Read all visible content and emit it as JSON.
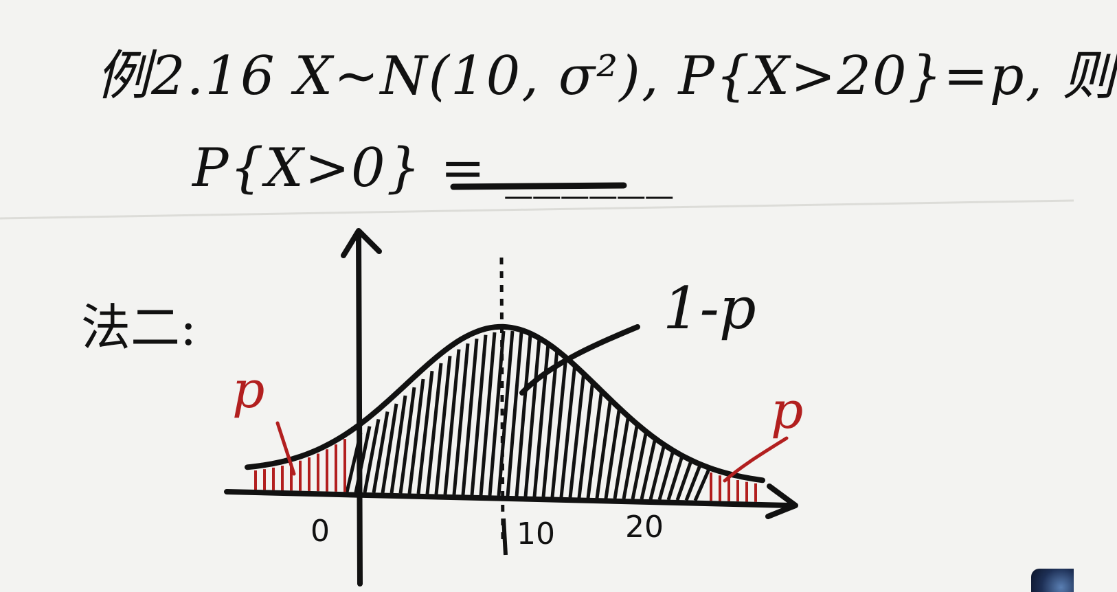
{
  "problem": {
    "line1": "例2.16 X~N(10, σ²), P{X>20}=p, 则",
    "line2": "P{X>0} = ______",
    "method_label": "法二:"
  },
  "diagram": {
    "label_middle": "1-p",
    "label_left_tail": "p",
    "label_right_tail": "p",
    "ticks": [
      "0",
      "10",
      "20"
    ],
    "colors": {
      "ink": "#111111",
      "red": "#b21f1f"
    }
  }
}
